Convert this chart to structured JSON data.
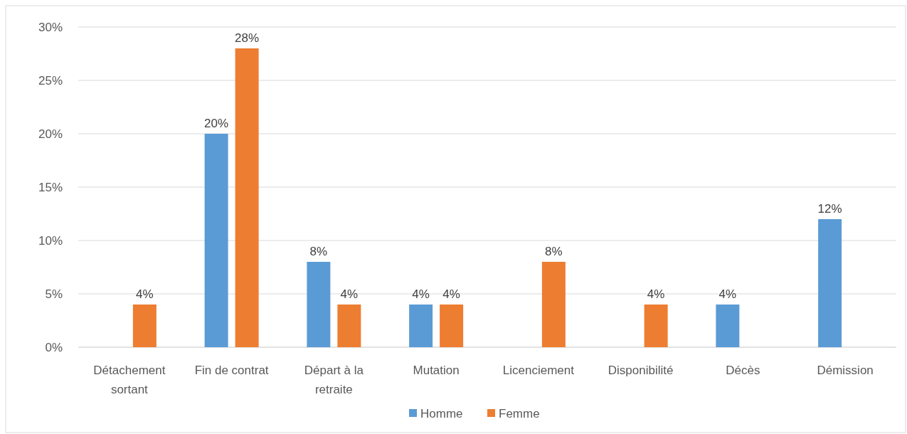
{
  "chart_data": {
    "type": "bar",
    "categories": [
      "Détachement sortant",
      "Fin de contrat",
      "Départ à la retraite",
      "Mutation",
      "Licenciement",
      "Disponibilité",
      "Décès",
      "Démission"
    ],
    "series": [
      {
        "name": "Homme",
        "color": "#5b9bd5",
        "values": [
          null,
          20,
          8,
          4,
          null,
          null,
          4,
          12
        ],
        "value_labels": [
          null,
          "20%",
          "8%",
          "4%",
          null,
          null,
          "4%",
          "12%"
        ]
      },
      {
        "name": "Femme",
        "color": "#ed7d31",
        "values": [
          4,
          28,
          4,
          4,
          8,
          4,
          null,
          null
        ],
        "value_labels": [
          "4%",
          "28%",
          "4%",
          "4%",
          "8%",
          "4%",
          null,
          null
        ]
      }
    ],
    "ylim": [
      0,
      30
    ],
    "yticks": [
      {
        "value": 0,
        "label": "0%"
      },
      {
        "value": 5,
        "label": "5%"
      },
      {
        "value": 10,
        "label": "10%"
      },
      {
        "value": 15,
        "label": "15%"
      },
      {
        "value": 20,
        "label": "20%"
      },
      {
        "value": 25,
        "label": "25%"
      },
      {
        "value": 30,
        "label": "30%"
      }
    ],
    "grid": "y",
    "legend": "bottom"
  }
}
